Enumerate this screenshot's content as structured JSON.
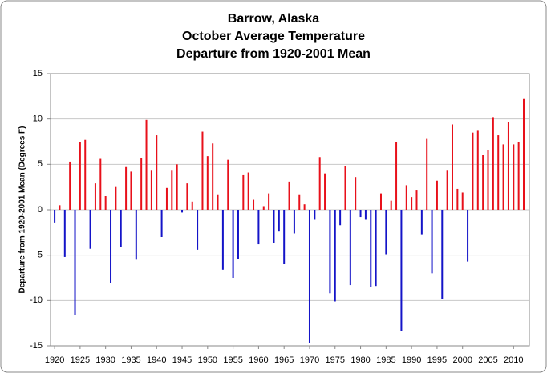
{
  "chart_data": {
    "type": "bar",
    "title": [
      "Barrow, Alaska",
      "October Average Temperature",
      "Departure from 1920-2001 Mean"
    ],
    "y_label": "Departure from 1920-2001 Mean (Degrees F)",
    "x": [
      1920,
      1921,
      1922,
      1923,
      1924,
      1925,
      1926,
      1927,
      1928,
      1929,
      1930,
      1931,
      1932,
      1933,
      1934,
      1935,
      1936,
      1937,
      1938,
      1939,
      1940,
      1941,
      1942,
      1943,
      1944,
      1945,
      1946,
      1947,
      1948,
      1949,
      1950,
      1951,
      1952,
      1953,
      1954,
      1955,
      1956,
      1957,
      1958,
      1959,
      1960,
      1961,
      1962,
      1963,
      1964,
      1965,
      1966,
      1967,
      1968,
      1969,
      1970,
      1971,
      1972,
      1973,
      1974,
      1975,
      1976,
      1977,
      1978,
      1979,
      1980,
      1981,
      1982,
      1983,
      1984,
      1985,
      1986,
      1987,
      1988,
      1989,
      1990,
      1991,
      1992,
      1993,
      1994,
      1995,
      1996,
      1997,
      1998,
      1999,
      2000,
      2001,
      2002,
      2003,
      2004,
      2005,
      2006,
      2007,
      2008,
      2009,
      2010,
      2011,
      2012
    ],
    "values": [
      -1.4,
      0.5,
      -5.2,
      5.3,
      -11.6,
      7.5,
      7.7,
      -4.3,
      2.9,
      5.6,
      1.5,
      -8.1,
      2.5,
      -4.1,
      4.7,
      4.2,
      -5.5,
      5.7,
      9.9,
      4.3,
      8.2,
      -3.0,
      2.4,
      4.3,
      5.0,
      -0.3,
      2.9,
      0.9,
      -4.4,
      8.6,
      5.9,
      7.3,
      1.7,
      -6.6,
      5.5,
      -7.5,
      -5.4,
      3.8,
      4.1,
      1.1,
      -3.8,
      0.4,
      1.8,
      -3.7,
      -2.4,
      -6.0,
      3.1,
      -2.6,
      1.7,
      0.6,
      -14.7,
      -1.1,
      5.8,
      4.0,
      -9.2,
      -10.1,
      -1.7,
      4.8,
      -8.3,
      3.6,
      -0.8,
      -1.1,
      -8.5,
      -8.4,
      1.8,
      -4.9,
      1.0,
      7.5,
      -13.4,
      2.7,
      1.4,
      2.2,
      -2.7,
      7.8,
      -7.0,
      3.2,
      -9.8,
      4.3,
      9.4,
      2.3,
      1.9,
      -5.7,
      8.5,
      8.7,
      6.0,
      6.6,
      10.2,
      8.2,
      7.2,
      9.7,
      7.2,
      7.5,
      12.2
    ],
    "positive_color": "#e8101a",
    "negative_color": "#1414c8",
    "xlim": [
      1919.2,
      2013.1
    ],
    "xticks": [
      1920,
      1925,
      1930,
      1935,
      1940,
      1945,
      1950,
      1955,
      1960,
      1965,
      1970,
      1975,
      1980,
      1985,
      1990,
      1995,
      2000,
      2005,
      2010
    ],
    "ylim": [
      -15,
      15
    ],
    "yticks": [
      -15,
      -10,
      -5,
      0,
      5,
      10,
      15
    ],
    "grid": true
  }
}
